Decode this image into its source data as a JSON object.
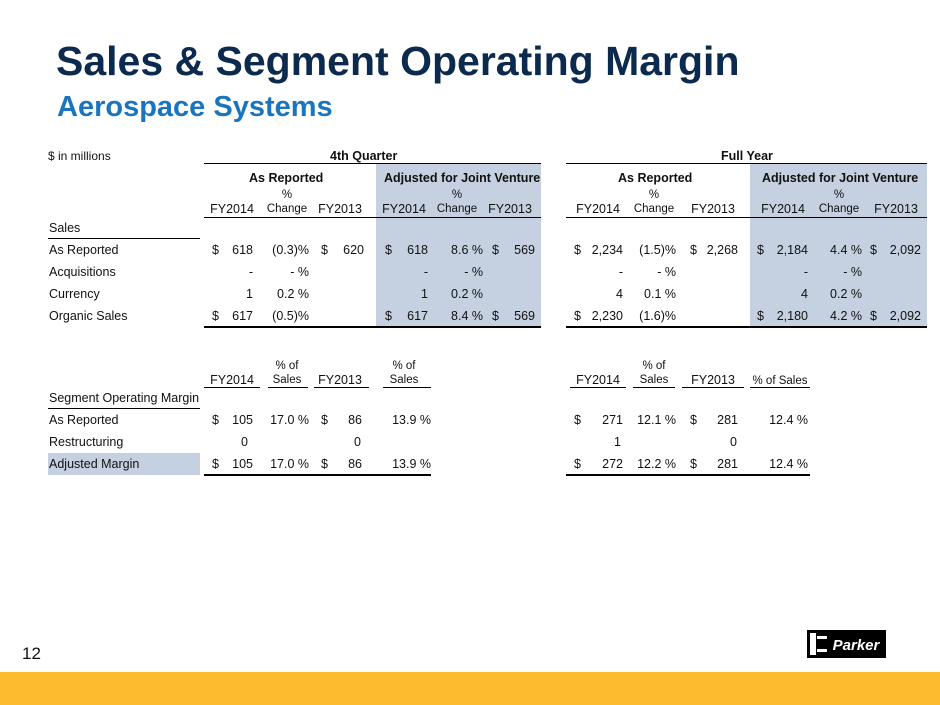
{
  "page": {
    "title": "Sales & Segment Operating Margin",
    "subtitle": "Aerospace Systems",
    "units_note": "$  in millions",
    "page_number": "12"
  },
  "brand": {
    "logo_text": "Parker",
    "accent_bar_color": "#fdbb30",
    "title_color": "#0c2a4d",
    "subtitle_color": "#1b75bc",
    "shade_color": "#c5d0e0"
  },
  "sales": {
    "period_headers": [
      "4th Quarter",
      "Full Year"
    ],
    "group_headers": [
      "As Reported",
      "Adjusted for Joint Venture",
      "As Reported",
      "Adjusted for Joint Venture"
    ],
    "col_headers": {
      "fy2014": "FY2014",
      "pct": "%",
      "change": "Change",
      "fy2013": "FY2013"
    },
    "section_label": "Sales",
    "rows": [
      {
        "label": "As Reported",
        "q_rep": {
          "d1": "$",
          "fy14": "618",
          "chg": "(0.3)%",
          "d2": "$",
          "fy13": "620"
        },
        "q_adj": {
          "d1": "$",
          "fy14": "618",
          "chg": "8.6 %",
          "d2": "$",
          "fy13": "569"
        },
        "y_rep": {
          "d1": "$",
          "fy14": "2,234",
          "chg": "(1.5)%",
          "d2": "$",
          "fy13": "2,268"
        },
        "y_adj": {
          "d1": "$",
          "fy14": "2,184",
          "chg": "4.4 %",
          "d2": "$",
          "fy13": "2,092"
        }
      },
      {
        "label": "Acquisitions",
        "q_rep": {
          "d1": "",
          "fy14": "-",
          "chg": "- %",
          "d2": "",
          "fy13": ""
        },
        "q_adj": {
          "d1": "",
          "fy14": "-",
          "chg": "- %",
          "d2": "",
          "fy13": ""
        },
        "y_rep": {
          "d1": "",
          "fy14": "-",
          "chg": "- %",
          "d2": "",
          "fy13": ""
        },
        "y_adj": {
          "d1": "",
          "fy14": "-",
          "chg": "- %",
          "d2": "",
          "fy13": ""
        }
      },
      {
        "label": "Currency",
        "q_rep": {
          "d1": "",
          "fy14": "1",
          "chg": "0.2 %",
          "d2": "",
          "fy13": ""
        },
        "q_adj": {
          "d1": "",
          "fy14": "1",
          "chg": "0.2 %",
          "d2": "",
          "fy13": ""
        },
        "y_rep": {
          "d1": "",
          "fy14": "4",
          "chg": "0.1 %",
          "d2": "",
          "fy13": ""
        },
        "y_adj": {
          "d1": "",
          "fy14": "4",
          "chg": "0.2 %",
          "d2": "",
          "fy13": ""
        }
      },
      {
        "label": "Organic Sales",
        "q_rep": {
          "d1": "$",
          "fy14": "617",
          "chg": "(0.5)%",
          "d2": "",
          "fy13": ""
        },
        "q_adj": {
          "d1": "$",
          "fy14": "617",
          "chg": "8.4 %",
          "d2": "$",
          "fy13": "569"
        },
        "y_rep": {
          "d1": "$",
          "fy14": "2,230",
          "chg": "(1.6)%",
          "d2": "",
          "fy13": ""
        },
        "y_adj": {
          "d1": "$",
          "fy14": "2,180",
          "chg": "4.2 %",
          "d2": "$",
          "fy13": "2,092"
        }
      }
    ]
  },
  "margin": {
    "col_headers": {
      "fy2014": "FY2014",
      "pct_of": "% of",
      "sales": "Sales",
      "fy2013": "FY2013",
      "pct_of_sales": "% of Sales"
    },
    "section_label": "Segment Operating Margin",
    "rows": [
      {
        "label": "As Reported",
        "q": {
          "d1": "$",
          "fy14": "105",
          "p14": "17.0 %",
          "d2": "$",
          "fy13": "86",
          "p13": "13.9 %"
        },
        "y": {
          "d1": "$",
          "fy14": "271",
          "p14": "12.1 %",
          "d2": "$",
          "fy13": "281",
          "p13": "12.4 %"
        }
      },
      {
        "label": "Restructuring",
        "q": {
          "d1": "",
          "fy14": "0",
          "p14": "",
          "d2": "",
          "fy13": "0",
          "p13": ""
        },
        "y": {
          "d1": "",
          "fy14": "1",
          "p14": "",
          "d2": "",
          "fy13": "0",
          "p13": ""
        }
      },
      {
        "label": "Adjusted Margin",
        "q": {
          "d1": "$",
          "fy14": "105",
          "p14": "17.0 %",
          "d2": "$",
          "fy13": "86",
          "p13": "13.9 %"
        },
        "y": {
          "d1": "$",
          "fy14": "272",
          "p14": "12.2 %",
          "d2": "$",
          "fy13": "281",
          "p13": "12.4 %"
        }
      }
    ]
  }
}
